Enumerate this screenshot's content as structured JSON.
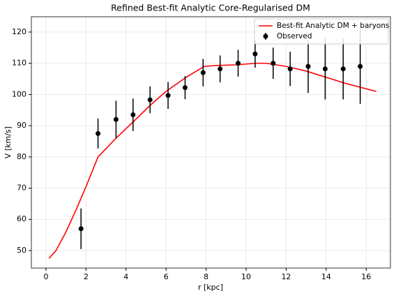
{
  "chart_data": {
    "type": "line",
    "title": "Refined Best-fit Analytic Core-Regularised DM",
    "xlabel": "r [kpc]",
    "ylabel": "V [km/s]",
    "xlim": [
      -0.73,
      17.21
    ],
    "ylim": [
      44.4,
      124.9
    ],
    "xticks": [
      0,
      2,
      4,
      6,
      8,
      10,
      12,
      14,
      16
    ],
    "yticks": [
      50,
      60,
      70,
      80,
      90,
      100,
      110,
      120
    ],
    "grid": true,
    "legend": "upper right",
    "series": [
      {
        "name": "Best-fit Analytic DM + baryons",
        "color": "#ff0000",
        "type": "line",
        "x": [
          0.15,
          0.5,
          1,
          1.5,
          2,
          2.6,
          3.5,
          4.4,
          5.2,
          6,
          7,
          7.9,
          8.5,
          9.5,
          10.5,
          11,
          12,
          13,
          14,
          15,
          16.5
        ],
        "values": [
          47.5,
          50,
          56,
          63,
          70.5,
          80,
          86,
          91.5,
          96.5,
          101,
          105.5,
          109,
          109.3,
          109.5,
          110,
          110,
          109,
          107.5,
          105.5,
          103.5,
          101
        ]
      },
      {
        "name": "Observed",
        "color": "#000000",
        "type": "errorbar",
        "x": [
          1.75,
          2.6,
          3.5,
          4.35,
          5.2,
          6.1,
          6.95,
          7.85,
          8.7,
          9.6,
          10.45,
          11.35,
          12.2,
          13.1,
          13.95,
          14.85,
          15.7
        ],
        "values": [
          57,
          87.5,
          92,
          93.5,
          98.3,
          99.7,
          102.2,
          107,
          108.2,
          110,
          113,
          110,
          108.2,
          109,
          108.2,
          108.2,
          109
        ],
        "errors": [
          6.5,
          4.8,
          6,
          5.2,
          4.3,
          4.3,
          3.7,
          4.4,
          4.3,
          4.3,
          4.4,
          5,
          5.5,
          8.5,
          9.8,
          9.8,
          12
        ]
      }
    ]
  }
}
